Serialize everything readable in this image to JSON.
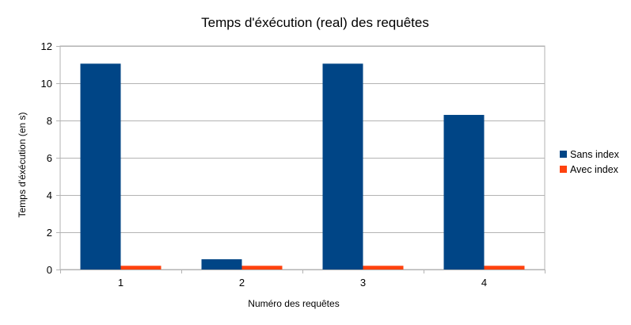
{
  "chart_data": {
    "type": "bar",
    "title": "Temps d'éxécution (real) des requêtes",
    "xlabel": "Numéro des requêtes",
    "ylabel": "Temps d'éxécution (en s)",
    "categories": [
      "1",
      "2",
      "3",
      "4"
    ],
    "series": [
      {
        "name": "Sans index",
        "values": [
          11.05,
          0.55,
          11.05,
          8.3
        ],
        "color": "#004586"
      },
      {
        "name": "Avec index",
        "values": [
          0.2,
          0.2,
          0.2,
          0.2
        ],
        "color": "#ff420e"
      }
    ],
    "ylim": [
      0,
      12
    ],
    "yticks": [
      0,
      2,
      4,
      6,
      8,
      10,
      12
    ],
    "grid": true,
    "legend": "right"
  }
}
